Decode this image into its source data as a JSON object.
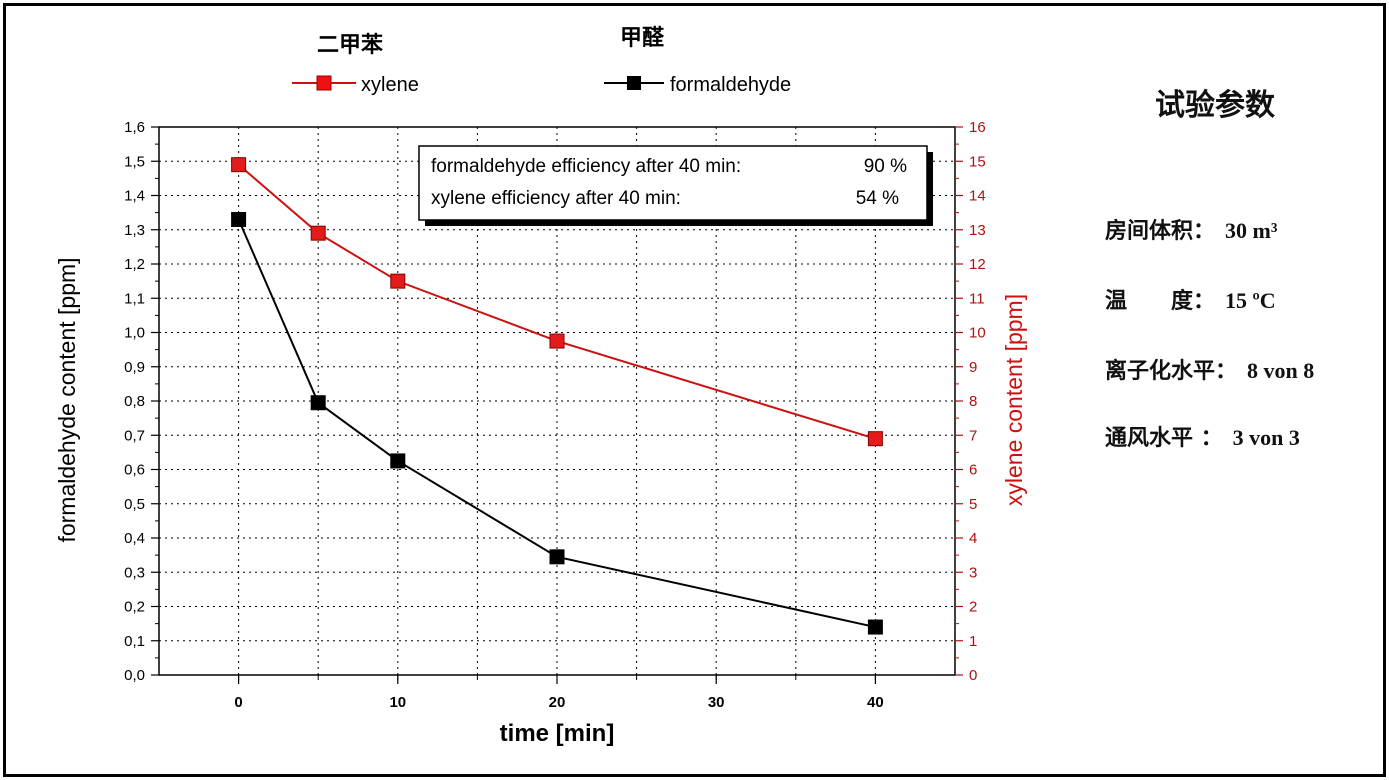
{
  "colors": {
    "xylene": "#cc1111",
    "formaldehyde": "#000000",
    "right_axis": "#b01010",
    "grid": "#000000"
  },
  "legend": {
    "xylene_cn": "二甲苯",
    "formaldehyde_cn": "甲醛",
    "xylene_label": "xylene",
    "formaldehyde_label": "formaldehyde"
  },
  "efficiency_box": {
    "line1_label": "formaldehyde efficiency after 40 min:",
    "line1_value": "90 %",
    "line2_label": "xylene efficiency after  40 min:",
    "line2_value": "54 %"
  },
  "params": {
    "title": "试验参数",
    "rows": [
      {
        "label": "房间体积：",
        "value": "30 m³"
      },
      {
        "label": "温　　度：",
        "value": "15 ºC"
      },
      {
        "label": "离子化水平：",
        "value": "8 von 8"
      },
      {
        "label": "通风水平 ：",
        "value": "3 von 3"
      }
    ]
  },
  "chart_data": {
    "type": "line",
    "x": [
      0,
      5,
      10,
      20,
      40
    ],
    "x_ticks": [
      0,
      10,
      20,
      30,
      40
    ],
    "x_tick_labels": [
      "0",
      "10",
      "20",
      "30",
      "40"
    ],
    "xlabel": "time [min]",
    "xlim": [
      -5,
      45
    ],
    "ylabel_left": "formaldehyde content [ppm]",
    "ylim_left": [
      0,
      1.6
    ],
    "y_left_tick_labels": [
      "0,0",
      "0,1",
      "0,2",
      "0,3",
      "0,4",
      "0,5",
      "0,6",
      "0,7",
      "0,8",
      "0,9",
      "1,0",
      "1,1",
      "1,2",
      "1,3",
      "1,4",
      "1,5",
      "1,6"
    ],
    "ylabel_right": "xylene content [ppm]",
    "ylim_right": [
      0,
      16
    ],
    "y_right_tick_labels": [
      "0",
      "1",
      "2",
      "3",
      "4",
      "5",
      "6",
      "7",
      "8",
      "9",
      "10",
      "11",
      "12",
      "13",
      "14",
      "15",
      "16"
    ],
    "grid": true,
    "series": [
      {
        "name": "formaldehyde",
        "axis": "left",
        "values": [
          1.33,
          0.795,
          0.625,
          0.345,
          0.14
        ]
      },
      {
        "name": "xylene",
        "axis": "right",
        "values": [
          14.9,
          12.9,
          11.5,
          9.75,
          6.9
        ]
      }
    ]
  }
}
